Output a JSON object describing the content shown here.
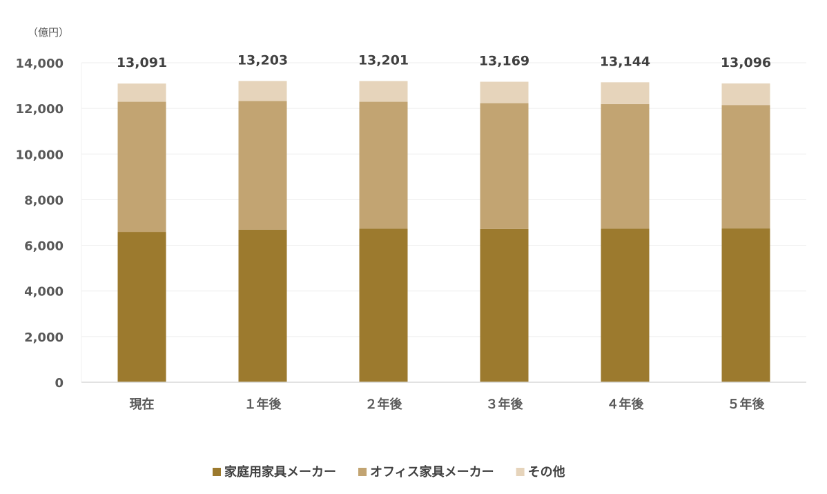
{
  "chart_data": {
    "type": "bar",
    "stacked": true,
    "unit_label": "（億円）",
    "categories": [
      "現在",
      "１年後",
      "２年後",
      "３年後",
      "４年後",
      "５年後"
    ],
    "series": [
      {
        "name": "家庭用家具メーカー",
        "color": "#9C7A2E",
        "values": [
          6590,
          6690,
          6730,
          6720,
          6730,
          6740
        ]
      },
      {
        "name": "オフィス家具メーカー",
        "color": "#C2A472",
        "values": [
          5700,
          5640,
          5560,
          5510,
          5460,
          5410
        ]
      },
      {
        "name": "その他",
        "color": "#E6D4BB",
        "values": [
          801,
          873,
          911,
          939,
          954,
          946
        ]
      }
    ],
    "totals": [
      "13,091",
      "13,203",
      "13,201",
      "13,169",
      "13,144",
      "13,096"
    ],
    "yticks": [
      "0",
      "2,000",
      "4,000",
      "6,000",
      "8,000",
      "10,000",
      "12,000",
      "14,000"
    ],
    "ylim": [
      0,
      14000
    ],
    "grid": true,
    "legend": "bottom"
  }
}
